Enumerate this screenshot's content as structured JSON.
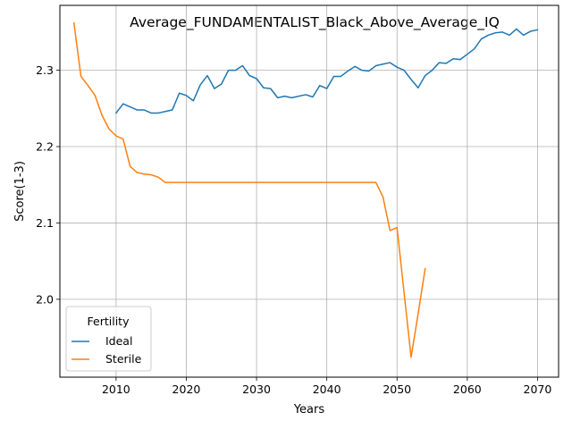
{
  "chart_data": {
    "type": "line",
    "title": "Average_FUNDAMENTALIST_Black_Above_Average_IQ",
    "xlabel": "Years",
    "ylabel": "Score(1-3)",
    "xlim": [
      2002,
      2073
    ],
    "ylim": [
      1.898,
      2.385
    ],
    "xticks": [
      2010,
      2020,
      2030,
      2040,
      2050,
      2060,
      2070
    ],
    "yticks": [
      2.0,
      2.1,
      2.2,
      2.3
    ],
    "ytick_labels": [
      "2.0",
      "2.1",
      "2.2",
      "2.3"
    ],
    "grid": true,
    "legend": {
      "title": "Fertility",
      "position": "lower-left"
    },
    "series": [
      {
        "name": "Ideal",
        "color": "#1f77b4",
        "x": [
          2010,
          2011,
          2012,
          2013,
          2014,
          2015,
          2016,
          2017,
          2018,
          2019,
          2020,
          2021,
          2022,
          2023,
          2024,
          2025,
          2026,
          2027,
          2028,
          2029,
          2030,
          2031,
          2032,
          2033,
          2034,
          2035,
          2036,
          2037,
          2038,
          2039,
          2040,
          2041,
          2042,
          2043,
          2044,
          2045,
          2046,
          2047,
          2048,
          2049,
          2050,
          2051,
          2052,
          2053,
          2054,
          2055,
          2056,
          2057,
          2058,
          2059,
          2060,
          2061,
          2062,
          2063,
          2064,
          2065,
          2066,
          2067,
          2068,
          2069,
          2070
        ],
        "y": [
          2.244,
          2.256,
          2.252,
          2.248,
          2.248,
          2.244,
          2.244,
          2.246,
          2.248,
          2.27,
          2.267,
          2.26,
          2.281,
          2.293,
          2.276,
          2.282,
          2.3,
          2.3,
          2.306,
          2.293,
          2.289,
          2.277,
          2.276,
          2.264,
          2.266,
          2.264,
          2.266,
          2.268,
          2.265,
          2.28,
          2.276,
          2.292,
          2.292,
          2.299,
          2.305,
          2.3,
          2.299,
          2.306,
          2.308,
          2.31,
          2.304,
          2.3,
          2.288,
          2.277,
          2.293,
          2.3,
          2.31,
          2.309,
          2.315,
          2.314,
          2.321,
          2.328,
          2.341,
          2.346,
          2.349,
          2.35,
          2.346,
          2.354,
          2.346,
          2.351,
          2.353
        ]
      },
      {
        "name": "Sterile",
        "color": "#ff7f0e",
        "x": [
          2004,
          2005,
          2006,
          2007,
          2008,
          2009,
          2010,
          2011,
          2012,
          2013,
          2014,
          2015,
          2016,
          2017,
          2018,
          2019,
          2020,
          2021,
          2022,
          2023,
          2024,
          2025,
          2026,
          2027,
          2028,
          2029,
          2030,
          2031,
          2032,
          2033,
          2034,
          2035,
          2036,
          2037,
          2038,
          2039,
          2040,
          2041,
          2042,
          2043,
          2044,
          2045,
          2046,
          2047,
          2048,
          2049,
          2050,
          2051,
          2052,
          2053,
          2054
        ],
        "y": [
          2.362,
          2.292,
          2.28,
          2.267,
          2.241,
          2.223,
          2.214,
          2.21,
          2.174,
          2.166,
          2.164,
          2.163,
          2.16,
          2.153,
          2.153,
          2.153,
          2.153,
          2.153,
          2.153,
          2.153,
          2.153,
          2.153,
          2.153,
          2.153,
          2.153,
          2.153,
          2.153,
          2.153,
          2.153,
          2.153,
          2.153,
          2.153,
          2.153,
          2.153,
          2.153,
          2.153,
          2.153,
          2.153,
          2.153,
          2.153,
          2.153,
          2.153,
          2.153,
          2.153,
          2.134,
          2.09,
          2.094,
          2.009,
          1.924,
          1.981,
          2.04
        ]
      }
    ]
  }
}
